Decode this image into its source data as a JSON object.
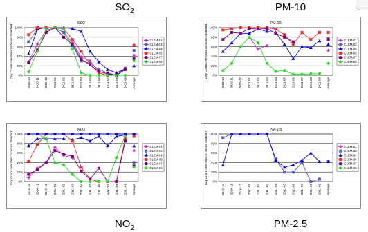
{
  "page": {
    "titles": {
      "so2": {
        "main": "SO",
        "sub": "2"
      },
      "pm10": {
        "main": "PM-10",
        "sub": ""
      },
      "no2": {
        "main": "NO",
        "sub": "2"
      },
      "pm25": {
        "main": "PM-2.5",
        "sub": ""
      }
    }
  },
  "chart_data": [
    {
      "type": "line",
      "title": "SO2",
      "ylabel": "Day Count over than 24 hours Standard",
      "xlabel": "",
      "categories": [
        "2010-10",
        "2010-11",
        "2010-12",
        "2011-01",
        "2011-02",
        "2011-03",
        "2011-04",
        "2011-05",
        "2011-06",
        "2011-07",
        "2011-08",
        "2011-09"
      ],
      "average_label": "Average",
      "y_ticks": [
        "0%",
        "20%",
        "40%",
        "60%",
        "80%",
        "100%"
      ],
      "ylim": [
        0,
        100
      ],
      "grid": true,
      "legend_position": "right",
      "series": [
        {
          "name": "CLEM-01",
          "color": "#cc33cc",
          "marker": "diamond",
          "values": [
            28,
            65,
            95,
            100,
            90,
            68,
            38,
            30,
            8,
            3,
            0,
            12
          ],
          "average": 42
        },
        {
          "name": "CLEM-02",
          "color": "#5555cc",
          "marker": "square",
          "values": [
            70,
            97,
            100,
            100,
            90,
            62,
            30,
            25,
            12,
            5,
            0,
            15
          ],
          "average": 52
        },
        {
          "name": "CLEM-04",
          "color": "#0000ee",
          "marker": "triangle",
          "values": [
            45,
            97,
            100,
            100,
            100,
            98,
            92,
            50,
            28,
            12,
            5,
            13
          ],
          "average": 20
        },
        {
          "name": "CLEM-05",
          "color": "#ff2222",
          "marker": "square",
          "values": [
            85,
            100,
            100,
            100,
            98,
            75,
            50,
            22,
            5,
            0,
            0,
            12
          ],
          "average": 63
        },
        {
          "name": "CLEM-07",
          "color": "#800080",
          "marker": "square",
          "values": [
            26,
            53,
            90,
            100,
            80,
            65,
            33,
            22,
            8,
            3,
            0,
            12
          ],
          "average": 35
        },
        {
          "name": "CLEM-08",
          "color": "#22dd22",
          "marker": "circle",
          "values": [
            7,
            50,
            98,
            100,
            97,
            55,
            5,
            0,
            0,
            0,
            0,
            0
          ],
          "average": 30
        }
      ]
    },
    {
      "type": "line",
      "title": "PM-10",
      "ylabel": "Day Count over than 24 hours Standard",
      "xlabel": "",
      "categories": [
        "2010-10",
        "2010-11",
        "2010-12",
        "2011-01",
        "2011-02",
        "2011-03",
        "2011-04",
        "2011-05",
        "2011-06",
        "2011-07",
        "2011-08",
        "2011-09"
      ],
      "average_label": "Average",
      "y_ticks": [
        "0%",
        "20%",
        "40%",
        "60%",
        "80%",
        "100%"
      ],
      "ylim": [
        0,
        100
      ],
      "grid": true,
      "legend_position": "right",
      "series": [
        {
          "name": "CLEM-01",
          "color": "#cc33cc",
          "marker": "diamond",
          "values": [
            null,
            null,
            null,
            80,
            55,
            62,
            null,
            null,
            null,
            null,
            null,
            null
          ],
          "average": 52
        },
        {
          "name": "CLEM-02",
          "color": "#5555cc",
          "marker": "square",
          "values": [
            null,
            null,
            null,
            null,
            null,
            null,
            null,
            null,
            null,
            null,
            null,
            null
          ],
          "average": 78
        },
        {
          "name": "CLEM-04",
          "color": "#0000ee",
          "marker": "triangle",
          "values": [
            50,
            68,
            88,
            88,
            97,
            92,
            90,
            65,
            35,
            60,
            58,
            72
          ],
          "average": 65
        },
        {
          "name": "CLEM-05",
          "color": "#ff2222",
          "marker": "square",
          "values": [
            95,
            98,
            100,
            100,
            100,
            100,
            97,
            85,
            65,
            90,
            75,
            90
          ],
          "average": 90
        },
        {
          "name": "CLEM-07",
          "color": "#800080",
          "marker": "square",
          "values": [
            75,
            90,
            88,
            98,
            97,
            98,
            88,
            80,
            70,
            null,
            null,
            null
          ],
          "average": 75
        },
        {
          "name": "CLEM-08",
          "color": "#22dd22",
          "marker": "circle",
          "values": [
            10,
            25,
            60,
            80,
            68,
            25,
            8,
            10,
            2,
            2,
            3,
            3
          ],
          "average": 25
        }
      ]
    },
    {
      "type": "line",
      "title": "NO2",
      "ylabel": "Day Count over than 24 hours Standard",
      "xlabel": "",
      "categories": [
        "2010-10",
        "2010-11",
        "2010-12",
        "2011-01",
        "2011-02",
        "2011-03",
        "2011-04",
        "2011-05",
        "2011-06",
        "2011-07",
        "2011-08",
        "2011-09"
      ],
      "average_label": "Average",
      "y_ticks": [
        "0%",
        "20%",
        "40%",
        "60%",
        "80%",
        "100%"
      ],
      "ylim": [
        0,
        100
      ],
      "grid": true,
      "legend_position": "right",
      "series": [
        {
          "name": "CLEM-01",
          "color": "#cc33cc",
          "marker": "diamond",
          "values": [
            8,
            28,
            40,
            72,
            55,
            50,
            null,
            null,
            null,
            null,
            null,
            null
          ],
          "average": 65
        },
        {
          "name": "CLEM-02",
          "color": "#5555cc",
          "marker": "square",
          "values": [
            null,
            null,
            null,
            null,
            null,
            null,
            null,
            null,
            null,
            null,
            null,
            null
          ],
          "average": 40
        },
        {
          "name": "CLEM-04",
          "color": "#0000ee",
          "marker": "triangle",
          "values": [
            75,
            90,
            90,
            90,
            90,
            88,
            92,
            85,
            95,
            75,
            95,
            98
          ],
          "average": 75
        },
        {
          "name": "CLEM-05",
          "color": "#ff2222",
          "marker": "square",
          "values": [
            42,
            78,
            100,
            100,
            100,
            85,
            30,
            5,
            0,
            0,
            0,
            90
          ],
          "average": 95
        },
        {
          "name": "CLEM-07",
          "color": "#800080",
          "marker": "square",
          "values": [
            15,
            25,
            40,
            65,
            58,
            53,
            22,
            5,
            28,
            0,
            0,
            85
          ],
          "average": 33
        },
        {
          "name": "CLEM-08",
          "color": "#22dd22",
          "marker": "circle",
          "values": [
            100,
            100,
            90,
            40,
            35,
            15,
            0,
            0,
            0,
            0,
            50,
            97
          ],
          "average": 30
        },
        {
          "name": "",
          "color": "#0000ee",
          "marker": "square",
          "values": [
            100,
            100,
            100,
            100,
            100,
            100,
            100,
            100,
            100,
            100,
            100,
            100
          ],
          "average": 100
        }
      ]
    },
    {
      "type": "line",
      "title": "PM-2.5",
      "ylabel": "Day Count over than 24 hours Standard",
      "xlabel": "",
      "categories": [
        "2010-10",
        "2010-11",
        "2010-12",
        "2011-01",
        "2011-02",
        "2011-03",
        "2011-04",
        "2011-05",
        "2011-06",
        "2011-07",
        "2011-08",
        "2011-09"
      ],
      "average_label": "Average",
      "y_ticks": [
        "0%",
        "20%",
        "40%",
        "60%",
        "80%",
        "100%"
      ],
      "ylim": [
        0,
        100
      ],
      "grid": true,
      "legend_position": "right",
      "series": [
        {
          "name": "CLEM-01",
          "color": "#cc33cc",
          "marker": "diamond",
          "values": [
            null,
            null,
            null,
            null,
            null,
            null,
            null,
            null,
            null,
            null,
            null,
            null
          ],
          "average": null
        },
        {
          "name": "CLEM-02",
          "color": "#5555cc",
          "marker": "square",
          "values": [
            92,
            100,
            100,
            100,
            100,
            100,
            48,
            20,
            20,
            40,
            0,
            5
          ],
          "average": 42
        },
        {
          "name": "CLEM-04",
          "color": "#0000ee",
          "marker": "triangle",
          "values": [
            35,
            100,
            100,
            100,
            100,
            100,
            45,
            30,
            35,
            45,
            60,
            42
          ],
          "average": 42
        },
        {
          "name": "CLEM-05",
          "color": "#ff2222",
          "marker": "square",
          "values": [
            null,
            null,
            null,
            null,
            null,
            null,
            null,
            null,
            null,
            null,
            null,
            null
          ],
          "average": null
        },
        {
          "name": "CLEM-07",
          "color": "#800080",
          "marker": "square",
          "values": [
            null,
            null,
            null,
            null,
            null,
            null,
            null,
            null,
            null,
            null,
            null,
            null
          ],
          "average": null
        },
        {
          "name": "CLEM-08",
          "color": "#22dd22",
          "marker": "circle",
          "values": [
            null,
            null,
            null,
            null,
            null,
            null,
            null,
            null,
            null,
            null,
            null,
            null
          ],
          "average": null
        }
      ]
    }
  ]
}
